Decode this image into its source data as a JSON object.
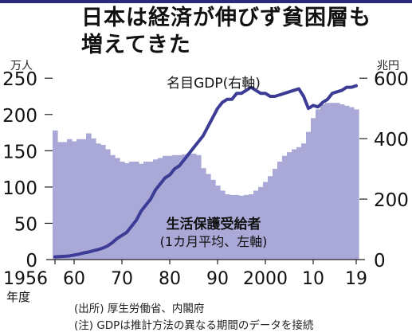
{
  "title_line1": "日本は経済が伸びず貧困層も",
  "title_line2": "増えてきた",
  "source_note": "(出所) 厚生労働省、内閣府",
  "annotation_note": "(注) GDPは推計方法の異なる期間のデータを接続",
  "chart_data": {
    "type": "bar+line",
    "left_unit": "万人",
    "right_unit": "兆円",
    "x_axis_unit": "年度",
    "x_ticks": [
      "1956",
      "60",
      "70",
      "80",
      "90",
      "2000",
      "10",
      "19"
    ],
    "x_tick_years": [
      1956,
      1960,
      1970,
      1980,
      1990,
      2000,
      2010,
      2019
    ],
    "y_left": {
      "ticks": [
        0,
        50,
        100,
        150,
        200,
        250
      ],
      "ylim": [
        0,
        270
      ]
    },
    "y_right": {
      "ticks": [
        0,
        200,
        400,
        600
      ],
      "ylim": [
        0,
        648
      ]
    },
    "grid": false,
    "series": [
      {
        "name": "生活保護受給者",
        "label_line1": "生活保護受給者",
        "label_line2": "(1カ月平均、左軸)",
        "type": "bar",
        "axis": "left",
        "color": "#a9a8d6",
        "x": [
          1956,
          1957,
          1958,
          1959,
          1960,
          1961,
          1962,
          1963,
          1964,
          1965,
          1966,
          1967,
          1968,
          1969,
          1970,
          1971,
          1972,
          1973,
          1974,
          1975,
          1976,
          1977,
          1978,
          1979,
          1980,
          1981,
          1982,
          1983,
          1984,
          1985,
          1986,
          1987,
          1988,
          1989,
          1990,
          1991,
          1992,
          1993,
          1994,
          1995,
          1996,
          1997,
          1998,
          1999,
          2000,
          2001,
          2002,
          2003,
          2004,
          2005,
          2006,
          2007,
          2008,
          2009,
          2010,
          2011,
          2012,
          2013,
          2014,
          2015,
          2016,
          2017,
          2018,
          2019
        ],
        "values": [
          178,
          162,
          162,
          166,
          163,
          166,
          166,
          174,
          167,
          160,
          158,
          152,
          144,
          140,
          135,
          133,
          135,
          135,
          132,
          135,
          135,
          138,
          140,
          143,
          143,
          144,
          144,
          145,
          146,
          146,
          144,
          126,
          118,
          110,
          102,
          95,
          90,
          89,
          89,
          88,
          89,
          90,
          95,
          100,
          107,
          115,
          125,
          135,
          143,
          148,
          152,
          155,
          160,
          176,
          195,
          207,
          214,
          216,
          216,
          216,
          214,
          212,
          210,
          207
        ]
      },
      {
        "name": "名目GDP(右軸)",
        "type": "line",
        "axis": "right",
        "color": "#3c3c96",
        "x": [
          1956,
          1957,
          1958,
          1959,
          1960,
          1961,
          1962,
          1963,
          1964,
          1965,
          1966,
          1967,
          1968,
          1969,
          1970,
          1971,
          1972,
          1973,
          1974,
          1975,
          1976,
          1977,
          1978,
          1979,
          1980,
          1981,
          1982,
          1983,
          1984,
          1985,
          1986,
          1987,
          1988,
          1989,
          1990,
          1991,
          1992,
          1993,
          1994,
          1995,
          1996,
          1997,
          1998,
          1999,
          2000,
          2001,
          2002,
          2003,
          2004,
          2005,
          2006,
          2007,
          2008,
          2009,
          2010,
          2011,
          2012,
          2013,
          2014,
          2015,
          2016,
          2017,
          2018,
          2019
        ],
        "values": [
          9,
          10,
          11,
          12,
          15,
          18,
          22,
          25,
          29,
          33,
          38,
          45,
          56,
          70,
          80,
          90,
          110,
          130,
          160,
          180,
          200,
          230,
          250,
          270,
          280,
          300,
          310,
          330,
          350,
          370,
          390,
          410,
          440,
          470,
          500,
          520,
          530,
          530,
          550,
          550,
          560,
          570,
          560,
          550,
          550,
          540,
          540,
          545,
          550,
          555,
          560,
          565,
          540,
          500,
          510,
          505,
          520,
          530,
          550,
          555,
          560,
          570,
          570,
          575
        ]
      }
    ]
  }
}
